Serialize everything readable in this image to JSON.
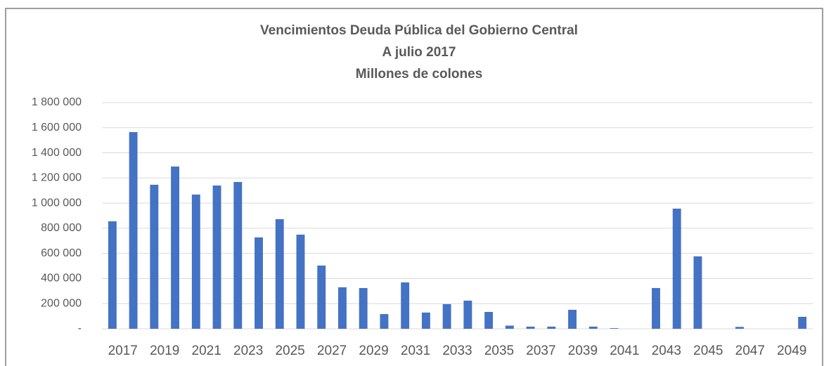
{
  "chart_data": {
    "type": "bar",
    "title": [
      "Vencimientos Deuda Pública del Gobierno Central",
      "A julio 2017",
      "Millones de colones"
    ],
    "categories": [
      "2017",
      null,
      "2019",
      null,
      "2021",
      null,
      "2023",
      null,
      "2025",
      null,
      "2027",
      null,
      "2029",
      null,
      "2031",
      null,
      "2033",
      null,
      "2035",
      null,
      "2037",
      null,
      "2039",
      null,
      "2041",
      null,
      "2043",
      null,
      "2045",
      null,
      "2047",
      null,
      "2049",
      null
    ],
    "values": [
      855000,
      1565000,
      1146000,
      1291000,
      1068000,
      1140000,
      1168000,
      727000,
      872000,
      749000,
      503000,
      330000,
      324000,
      117000,
      369000,
      129000,
      196000,
      224000,
      134000,
      25000,
      17000,
      17000,
      151000,
      17000,
      5000,
      0,
      324000,
      956000,
      576000,
      0,
      15000,
      0,
      0,
      95000
    ],
    "color": "#4472c4",
    "ylim": [
      0,
      1800000
    ],
    "yticks": [
      {
        "value": 0,
        "label": "-"
      },
      {
        "value": 200000,
        "label": "200 000"
      },
      {
        "value": 400000,
        "label": "400 000"
      },
      {
        "value": 600000,
        "label": "600 000"
      },
      {
        "value": 800000,
        "label": "800 000"
      },
      {
        "value": 1000000,
        "label": "1 000 000"
      },
      {
        "value": 1200000,
        "label": "1 200 000"
      },
      {
        "value": 1400000,
        "label": "1 400 000"
      },
      {
        "value": 1600000,
        "label": "1 600 000"
      },
      {
        "value": 1800000,
        "label": "1 800 000"
      }
    ],
    "grid": true
  }
}
